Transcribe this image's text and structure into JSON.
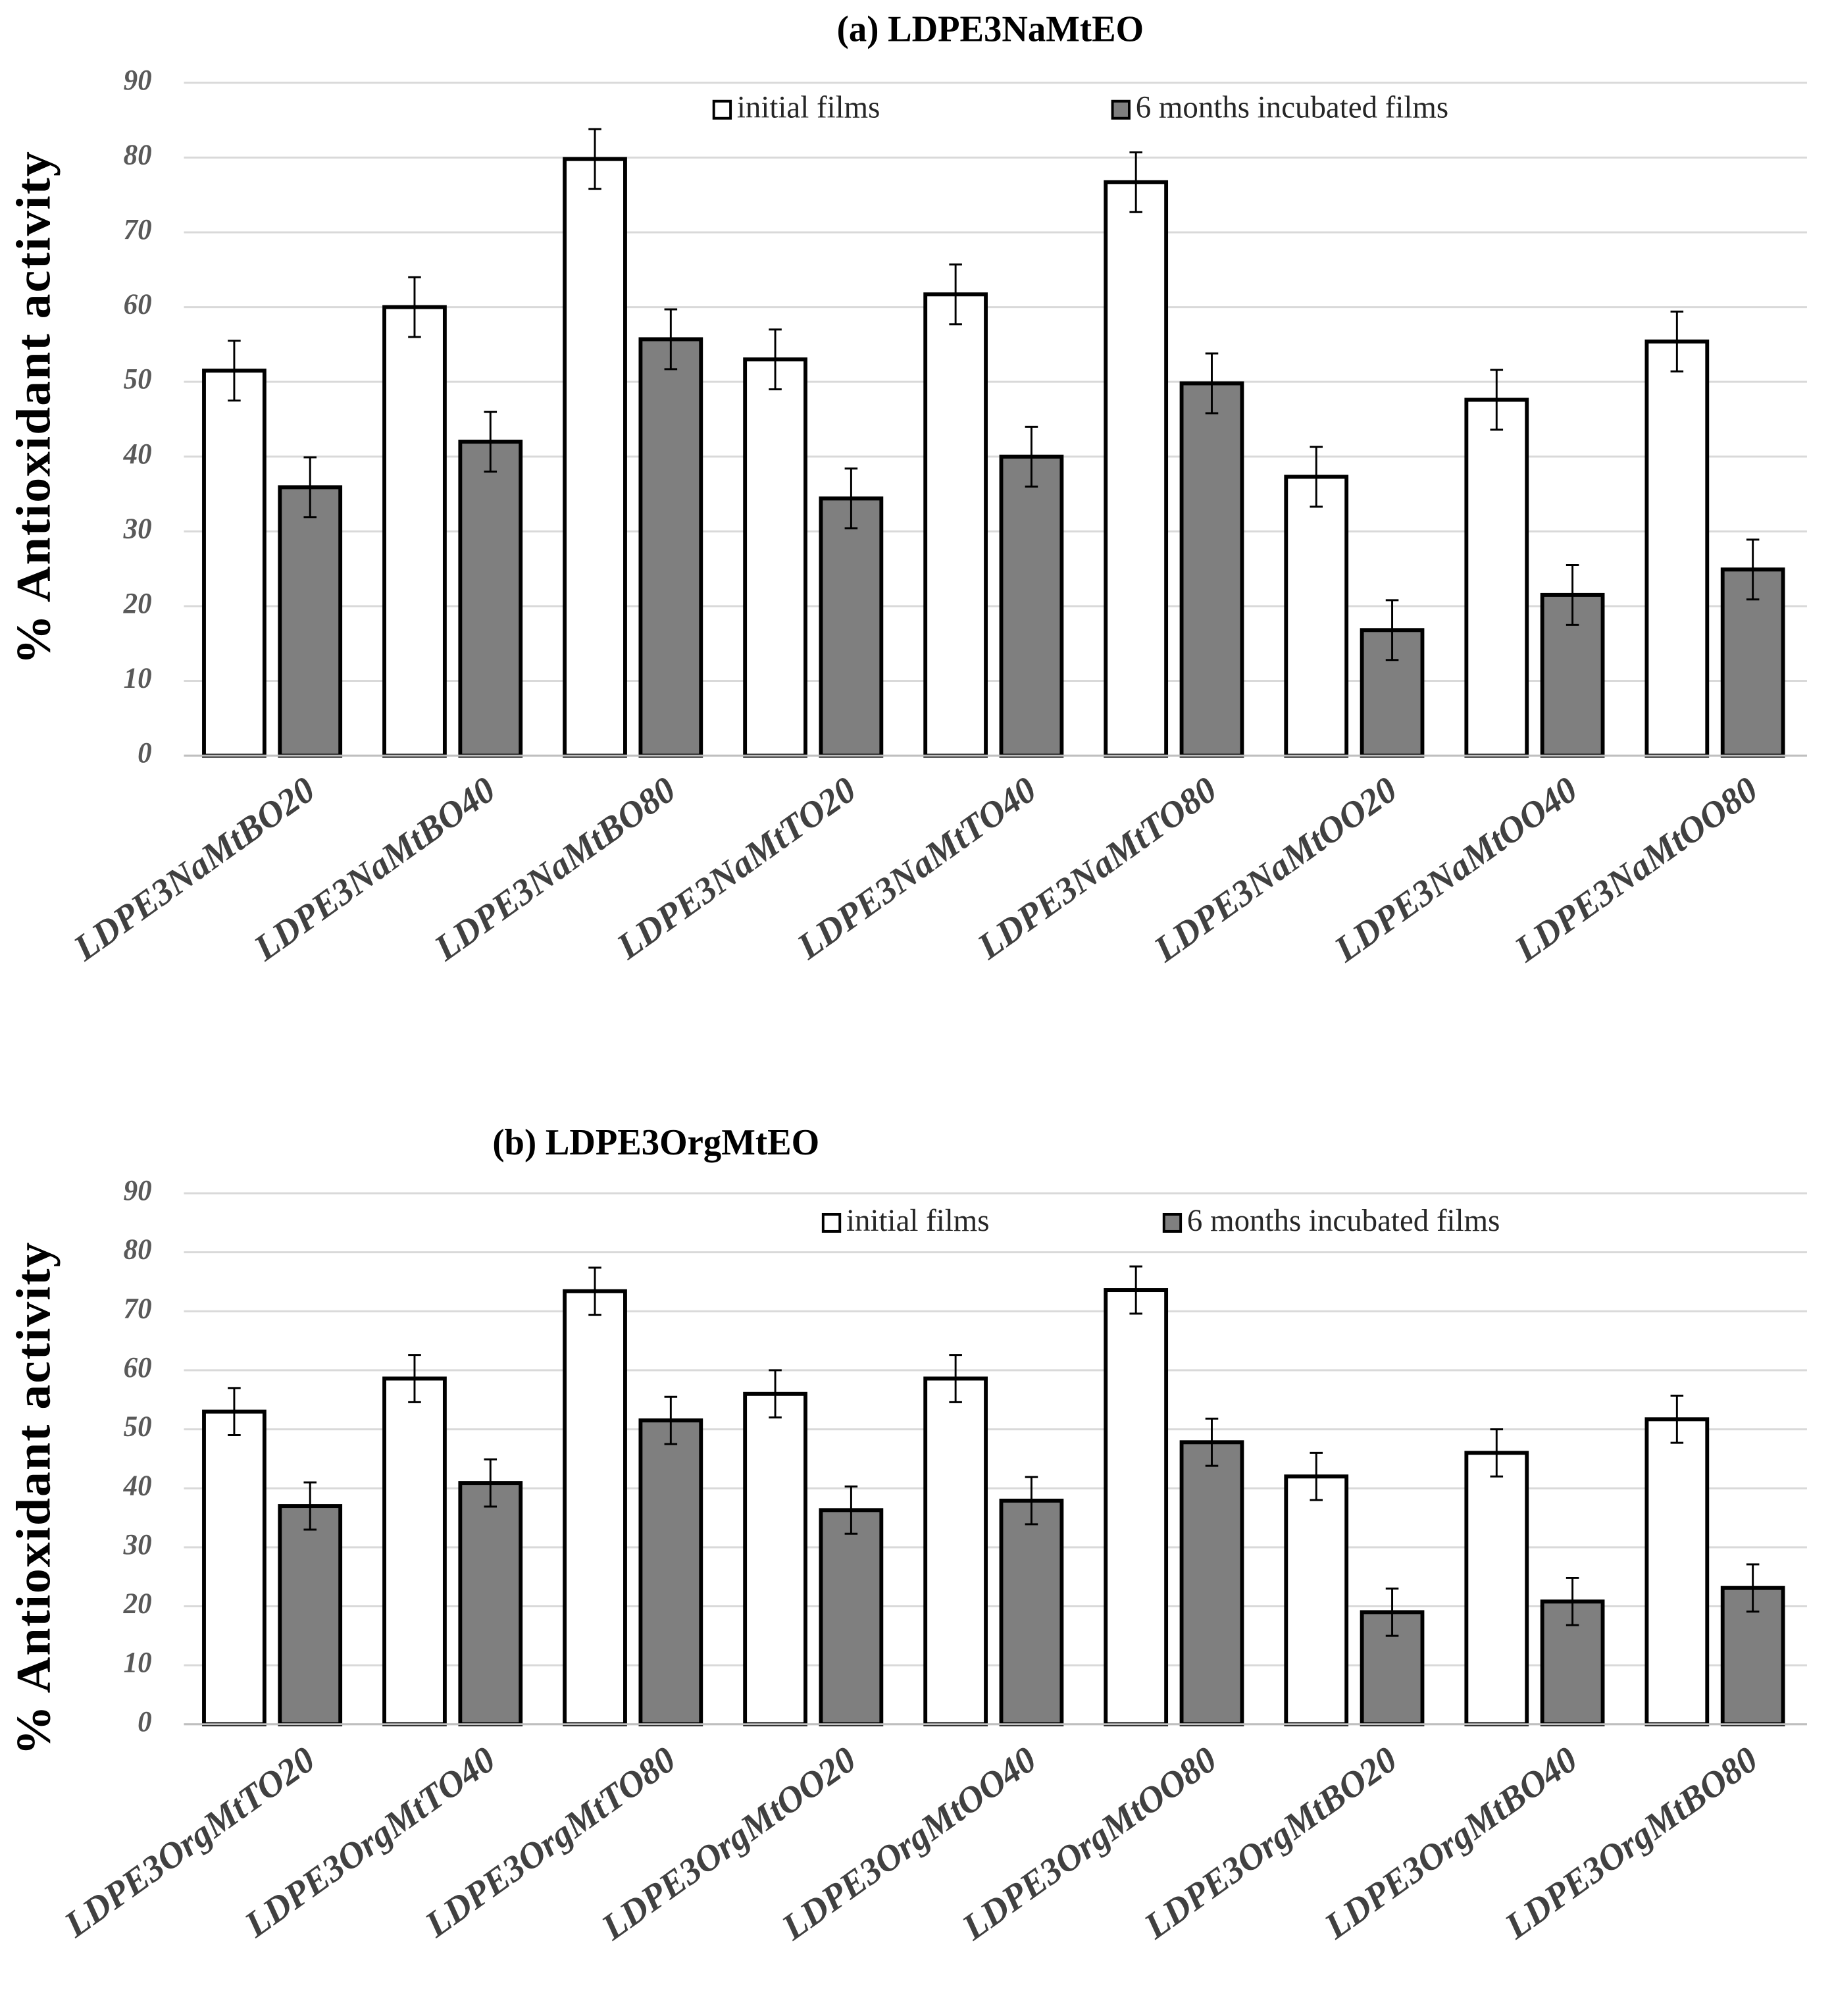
{
  "chart_data": [
    {
      "type": "bar",
      "title": "(a) LDPE3NaMtEO",
      "y_label": "% Antioxidant activity",
      "categories": [
        "LDPE3NaMtBO20",
        "LDPE3NaMtBO40",
        "LDPE3NaMtBO80",
        "LDPE3NaMtTO20",
        "LDPE3NaMtTO40",
        "LDPE3NaMtTO80",
        "LDPE3NaMtOO20",
        "LDPE3NaMtOO40",
        "LDPE3NaMtOO80"
      ],
      "series": [
        {
          "name": "initial  films",
          "color": "#ffffff",
          "values": [
            51.5,
            60,
            79.8,
            53,
            61.7,
            76.7,
            37.3,
            47.6,
            55.4
          ],
          "errors": [
            4,
            4,
            4,
            4,
            4,
            4,
            4,
            4,
            4
          ]
        },
        {
          "name": "6 months incubated films",
          "color": "#7f7f7f",
          "values": [
            35.9,
            42,
            55.7,
            34.4,
            40,
            49.8,
            16.8,
            21.5,
            24.9
          ],
          "errors": [
            4,
            4,
            4,
            4,
            4,
            4,
            4,
            4,
            4
          ]
        }
      ],
      "ylim": [
        0,
        90
      ],
      "yticks": [
        0,
        10,
        20,
        30,
        40,
        50,
        60,
        70,
        80,
        90
      ],
      "grid": true
    },
    {
      "type": "bar",
      "title": "(b) LDPE3OrgMtEO",
      "y_label": "% Antioxidant activity",
      "categories": [
        "LDPE3OrgMtTO20",
        "LDPE3OrgMtTO40",
        "LDPE3OrgMtTO80",
        "LDPE3OrgMtOO20",
        "LDPE3OrgMtOO40",
        "LDPE3OrgMtOO80",
        "LDPE3OrgMtBO20",
        "LDPE3OrgMtBO40",
        "LDPE3OrgMtBO80"
      ],
      "series": [
        {
          "name": "initial  films",
          "color": "#ffffff",
          "values": [
            53,
            58.6,
            73.4,
            56,
            58.6,
            73.6,
            42,
            46,
            51.7
          ],
          "errors": [
            4,
            4,
            4,
            4,
            4,
            4,
            4,
            4,
            4
          ]
        },
        {
          "name": "6 months incubated films",
          "color": "#7f7f7f",
          "values": [
            37,
            40.9,
            51.5,
            36.3,
            37.9,
            47.8,
            19,
            20.8,
            23.1
          ],
          "errors": [
            4,
            4,
            4,
            4,
            4,
            4,
            4,
            4,
            4
          ]
        }
      ],
      "ylim": [
        0,
        90
      ],
      "yticks": [
        0,
        10,
        20,
        30,
        40,
        50,
        60,
        70,
        80,
        90
      ],
      "grid": true
    }
  ]
}
